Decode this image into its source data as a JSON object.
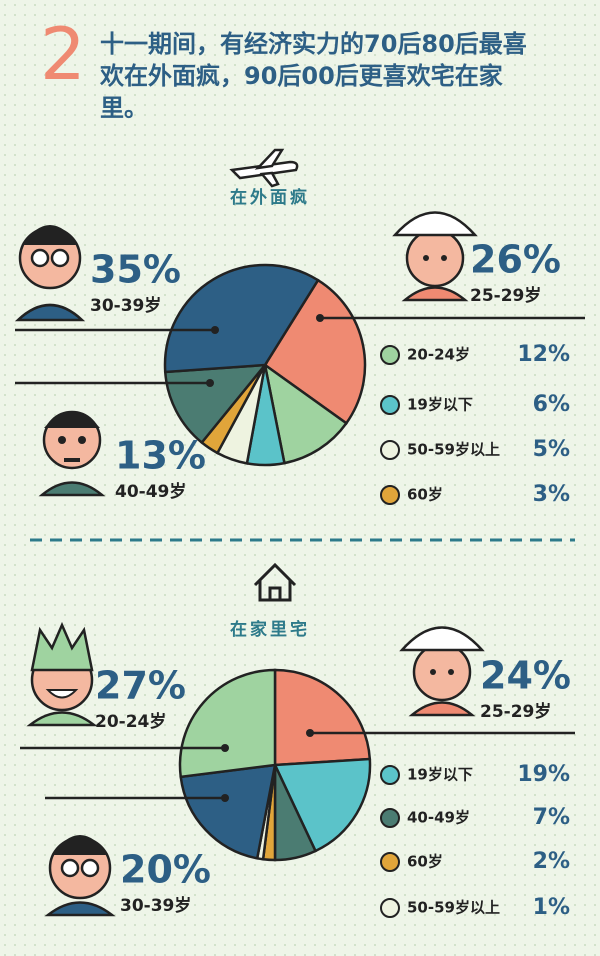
{
  "header": {
    "number": "2",
    "text": "十一期间，有经济实力的70后80后最喜欢在外面疯，90后00后更喜欢宅在家里。"
  },
  "chart_data": [
    {
      "type": "pie",
      "title": "在外面疯",
      "categories": [
        "25-29岁",
        "20-24岁",
        "19岁以下",
        "50-59岁以上",
        "60岁",
        "40-49岁",
        "30-39岁"
      ],
      "values": [
        26,
        12,
        6,
        5,
        3,
        13,
        35
      ],
      "value_labels": [
        "26%",
        "12%",
        "6%",
        "5%",
        "3%",
        "13%",
        "35%"
      ],
      "colors": [
        "#ef8a72",
        "#9fd3a0",
        "#5bc3c9",
        "#eef3e0",
        "#e1a53a",
        "#4b7c72",
        "#2d5f85"
      ]
    },
    {
      "type": "pie",
      "title": "在家里宅",
      "categories": [
        "25-29岁",
        "19岁以下",
        "40-49岁",
        "60岁",
        "50-59岁以上",
        "30-39岁",
        "20-24岁"
      ],
      "values": [
        24,
        19,
        7,
        2,
        1,
        20,
        27
      ],
      "value_labels": [
        "24%",
        "19%",
        "7%",
        "2%",
        "1%",
        "20%",
        "27%"
      ],
      "colors": [
        "#ef8a72",
        "#5bc3c9",
        "#4b7c72",
        "#e1a53a",
        "#eef3e0",
        "#2d5f85",
        "#9fd3a0"
      ]
    }
  ]
}
